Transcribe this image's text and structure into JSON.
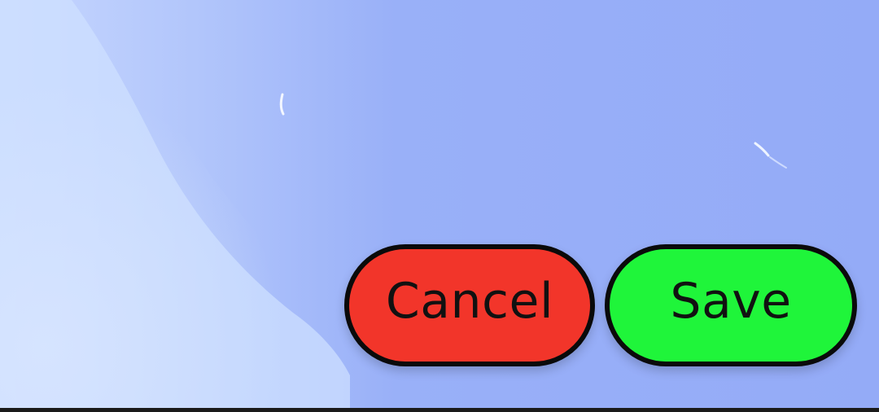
{
  "actions": {
    "cancel_label": "Cancel",
    "save_label": "Save"
  },
  "colors": {
    "background": "#95adf7",
    "cancel": "#f2352a",
    "save": "#1ff53a",
    "outline": "#0a0a0a"
  },
  "icons": {
    "background": "sky-photo-background"
  }
}
